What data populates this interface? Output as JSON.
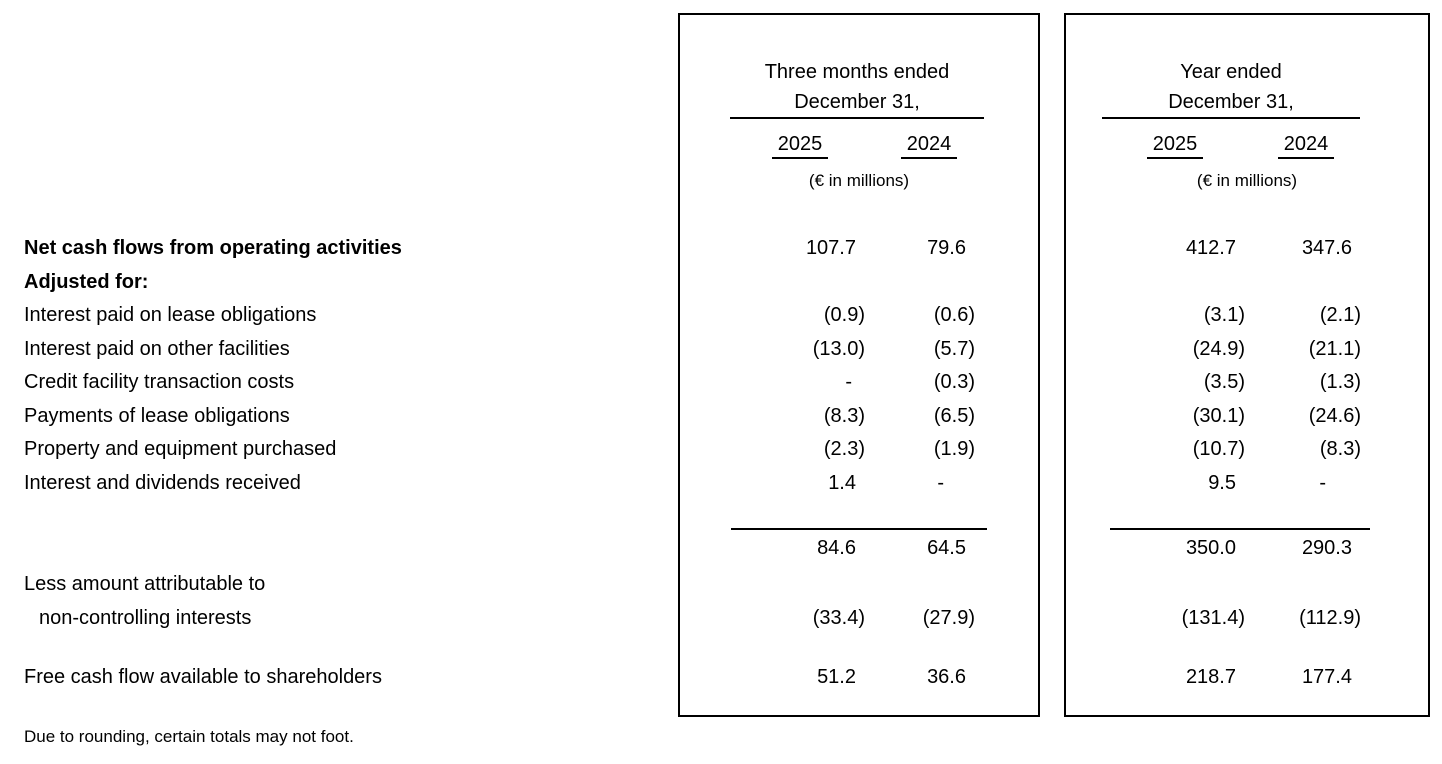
{
  "page": {
    "footnote": "Due to rounding, certain totals may not foot.",
    "colors": {
      "text": "#000000",
      "background": "#ffffff",
      "box_border": "#000000",
      "rule": "#000000"
    }
  },
  "table": {
    "groups": [
      {
        "title_line1": "Three months ended",
        "title_line2": "December 31,",
        "col_headers": [
          "2025",
          "2024"
        ],
        "units_note": "(€ in millions)"
      },
      {
        "title_line1": "Year ended",
        "title_line2": "December 31,",
        "col_headers": [
          "2025",
          "2024"
        ],
        "units_note": "(€ in millions)"
      }
    ],
    "rows": [
      {
        "label": "Net cash flows from operating activities",
        "bold": true,
        "values": [
          "107.7",
          "79.6",
          "412.7",
          "347.6"
        ]
      },
      {
        "label": "Adjusted for:",
        "bold": true,
        "values": [
          "",
          "",
          "",
          ""
        ]
      },
      {
        "label": "Interest paid on lease obligations",
        "values": [
          "(0.9)",
          "(0.6)",
          "(3.1)",
          "(2.1)"
        ]
      },
      {
        "label": "Interest paid on other facilities",
        "values": [
          "(13.0)",
          "(5.7)",
          "(24.9)",
          "(21.1)"
        ]
      },
      {
        "label": "Credit facility transaction costs",
        "values": [
          "-",
          "(0.3)",
          "(3.5)",
          "(1.3)"
        ]
      },
      {
        "label": "Payments of lease obligations",
        "values": [
          "(8.3)",
          "(6.5)",
          "(30.1)",
          "(24.6)"
        ]
      },
      {
        "label": "Property and equipment purchased",
        "values": [
          "(2.3)",
          "(1.9)",
          "(10.7)",
          "(8.3)"
        ]
      },
      {
        "label": "Interest and dividends received",
        "values": [
          "1.4",
          "-",
          "9.5",
          "-"
        ]
      },
      {
        "label": "",
        "subtotal": true,
        "values": [
          "84.6",
          "64.5",
          "350.0",
          "290.3"
        ]
      },
      {
        "label": "Less amount attributable to",
        "values": [
          "",
          "",
          "",
          ""
        ]
      },
      {
        "label": "non-controlling interests",
        "indent": true,
        "values": [
          "(33.4)",
          "(27.9)",
          "(131.4)",
          "(112.9)"
        ]
      },
      {
        "label": "Free cash flow available to shareholders",
        "values": [
          "51.2",
          "36.6",
          "218.7",
          "177.4"
        ]
      }
    ]
  }
}
